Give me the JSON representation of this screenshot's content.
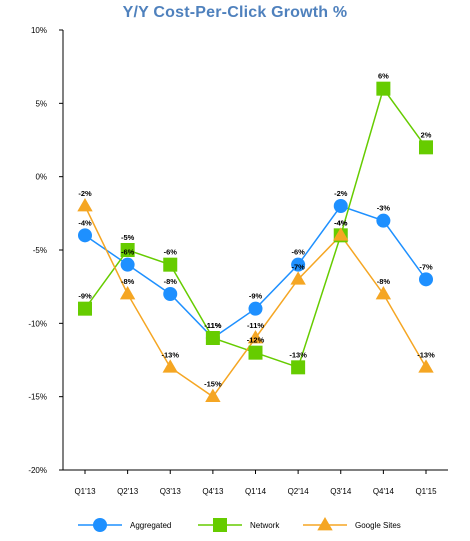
{
  "chart_data": {
    "type": "line",
    "title": "Y/Y Cost-Per-Click Growth %",
    "xlabel": "",
    "ylabel": "",
    "categories": [
      "Q1'13",
      "Q2'13",
      "Q3'13",
      "Q4'13",
      "Q1'14",
      "Q2'14",
      "Q3'14",
      "Q4'14",
      "Q1'15"
    ],
    "ylim": [
      -20,
      10
    ],
    "yticks": [
      10,
      5,
      0,
      -5,
      -10,
      -15,
      -20
    ],
    "ytick_labels": [
      "10%",
      "5%",
      "0%",
      "-5%",
      "-10%",
      "-15%",
      "-20%"
    ],
    "grid": false,
    "legend": "bottom",
    "series": [
      {
        "name": "Aggregated",
        "color": "#1e90ff",
        "marker": "circle",
        "values": [
          -4,
          -6,
          -8,
          -11,
          -9,
          -6,
          -2,
          -3,
          -7
        ],
        "labels": [
          "-4%",
          "-6%",
          "-8%",
          "-11%",
          "-9%",
          "-6%",
          "-2%",
          "-3%",
          "-7%"
        ]
      },
      {
        "name": "Network",
        "color": "#66cc00",
        "marker": "square",
        "values": [
          -9,
          -5,
          -6,
          -11,
          -12,
          -13,
          -4,
          6,
          2
        ],
        "labels": [
          "-9%",
          "-5%",
          "-6%",
          "-11%",
          "-12%",
          "-13%",
          "-4%",
          "6%",
          "2%"
        ]
      },
      {
        "name": "Google Sites",
        "color": "#f5a623",
        "marker": "triangle",
        "values": [
          -2,
          -8,
          -13,
          -15,
          -11,
          -7,
          -4,
          -8,
          -13
        ],
        "labels": [
          "-2%",
          "-8%",
          "-13%",
          "-15%",
          "-11%",
          "-7%",
          "-4%",
          "-8%",
          "-13%"
        ]
      }
    ]
  }
}
